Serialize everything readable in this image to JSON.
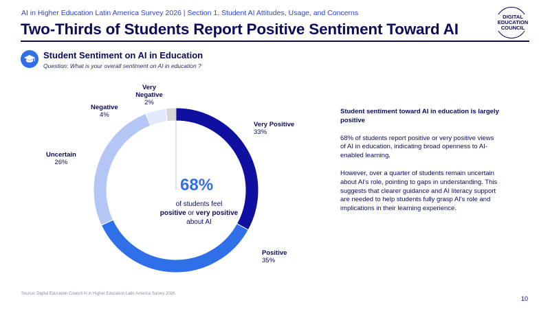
{
  "header": {
    "supertitle": "AI in Higher Education Latin America Survey 2026 | Section 1. Student AI Attitudes, Usage, and Concerns",
    "title": "Two-Thirds of Students Report Positive Sentiment Toward AI"
  },
  "logo": {
    "line1": "DIGITAL",
    "line2": "EDUCATION",
    "line3": "COUNCIL"
  },
  "section": {
    "icon": "graduation-cap-icon",
    "title": "Student Sentiment on AI in Education",
    "question": "Question: What is your overall sentiment on AI in education ?"
  },
  "chart_data": {
    "type": "pie",
    "subtype": "donut",
    "categories": [
      "Very Positive",
      "Positive",
      "Uncertain",
      "Negative",
      "Very Negative"
    ],
    "values": [
      33,
      35,
      26,
      4,
      2
    ],
    "labels": [
      "33%",
      "35%",
      "26%",
      "4%",
      "2%"
    ],
    "colors": [
      "#0f0fa0",
      "#2f6fe7",
      "#b4c6f6",
      "#e2e9fc",
      "#d6d6d6"
    ],
    "center_value": "68%",
    "center_text": {
      "pre": "of students feel",
      "bold1": "positive",
      "mid": "or",
      "bold2": "very positive",
      "post": "about AI"
    }
  },
  "panel": {
    "heading": "Student sentiment toward AI in education is largely positive",
    "paragraph1": "68% of students report positive or very positive views of AI in education, indicating broad openness to AI-enabled learning.",
    "paragraph2": "However, over a quarter of students remain uncertain about AI's role, pointing to gaps in understanding. This suggests that clearer guidance and AI literacy support are needed to help students fully grasp AI's role and implications in their learning experience."
  },
  "footer": {
    "source": "Source: Digital Education Council AI in Higher Education Latin America Survey 2026.",
    "page": "10"
  }
}
